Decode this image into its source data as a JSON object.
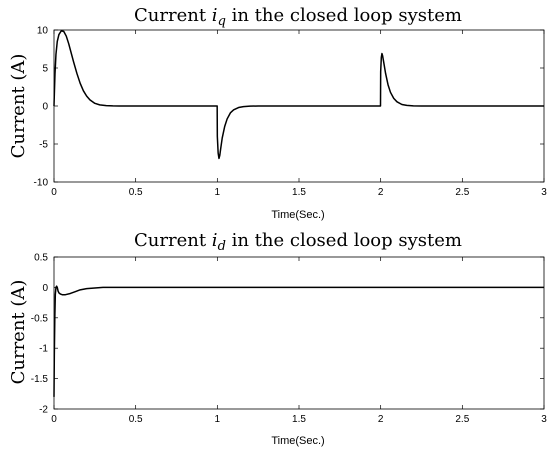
{
  "chart_data": [
    {
      "type": "line",
      "title": {
        "prefix": "Current ",
        "symbol": "i",
        "subscript": "q",
        "suffix": " in the closed loop system"
      },
      "xlabel": "Time(Sec.)",
      "ylabel": "Current (A)",
      "xlim": [
        0,
        3
      ],
      "ylim": [
        -10,
        10
      ],
      "xticks": [
        0,
        0.5,
        1,
        1.5,
        2,
        2.5,
        3
      ],
      "xtick_labels": [
        "0",
        "0.5",
        "1",
        "1.5",
        "2",
        "2.5",
        "3"
      ],
      "yticks": [
        10,
        5,
        0,
        -5,
        -10
      ],
      "ytick_labels": [
        "10",
        "5",
        "0",
        "-5",
        "-10"
      ],
      "grid": false,
      "series": [
        {
          "color": "#000000",
          "x": [
            0,
            0.002,
            0.006,
            0.012,
            0.02,
            0.03,
            0.045,
            0.06,
            0.075,
            0.09,
            0.105,
            0.12,
            0.14,
            0.16,
            0.18,
            0.2,
            0.22,
            0.25,
            0.28,
            0.32,
            0.36,
            0.4,
            0.5,
            0.7,
            0.9,
            0.999,
            1.0,
            1.005,
            1.01,
            1.015,
            1.02,
            1.03,
            1.045,
            1.06,
            1.08,
            1.1,
            1.13,
            1.16,
            1.2,
            1.25,
            1.3,
            1.4,
            1.6,
            1.8,
            1.999,
            2.0,
            2.004,
            2.008,
            2.012,
            2.02,
            2.03,
            2.045,
            2.06,
            2.08,
            2.1,
            2.13,
            2.16,
            2.2,
            2.25,
            2.3,
            2.4,
            2.6,
            2.8,
            3.0
          ],
          "y": [
            0,
            1.5,
            4.2,
            6.8,
            8.5,
            9.4,
            9.9,
            9.8,
            9.2,
            8.2,
            7.0,
            5.8,
            4.3,
            3.0,
            2.0,
            1.3,
            0.8,
            0.35,
            0.15,
            0.05,
            0.01,
            0,
            0,
            0,
            0,
            0,
            -4.0,
            -6.2,
            -6.9,
            -6.5,
            -5.7,
            -4.2,
            -2.7,
            -1.7,
            -0.9,
            -0.5,
            -0.2,
            -0.08,
            -0.02,
            0,
            0,
            0,
            0,
            0,
            0,
            4.5,
            6.4,
            6.9,
            6.6,
            5.6,
            4.3,
            2.8,
            1.8,
            1.0,
            0.55,
            0.2,
            0.08,
            0.02,
            0,
            0,
            0,
            0,
            0,
            0
          ]
        }
      ]
    },
    {
      "type": "line",
      "title": {
        "prefix": "Current ",
        "symbol": "i",
        "subscript": "d",
        "suffix": " in the closed loop system"
      },
      "xlabel": "Time(Sec.)",
      "ylabel": "Current (A)",
      "xlim": [
        0,
        3
      ],
      "ylim": [
        -2,
        0.5
      ],
      "xticks": [
        0,
        0.5,
        1,
        1.5,
        2,
        2.5,
        3
      ],
      "xtick_labels": [
        "0",
        "0.5",
        "1",
        "1.5",
        "2",
        "2.5",
        "3"
      ],
      "yticks": [
        0.5,
        0,
        -0.5,
        -1,
        -1.5,
        -2
      ],
      "ytick_labels": [
        "0.5",
        "0",
        "-0.5",
        "-1",
        "-1.5",
        "-2"
      ],
      "grid": false,
      "series": [
        {
          "color": "#000000",
          "x": [
            0,
            0.002,
            0.005,
            0.008,
            0.012,
            0.016,
            0.02,
            0.025,
            0.03,
            0.04,
            0.05,
            0.07,
            0.1,
            0.13,
            0.16,
            0.2,
            0.25,
            0.3,
            0.5,
            1.0,
            1.5,
            2.0,
            2.5,
            3.0
          ],
          "y": [
            -1.8,
            -1.1,
            -0.5,
            -0.12,
            0.0,
            0.02,
            0.0,
            -0.06,
            -0.09,
            -0.11,
            -0.12,
            -0.12,
            -0.1,
            -0.07,
            -0.04,
            -0.02,
            -0.01,
            0,
            0,
            0,
            0,
            0,
            0,
            0
          ]
        }
      ]
    }
  ]
}
